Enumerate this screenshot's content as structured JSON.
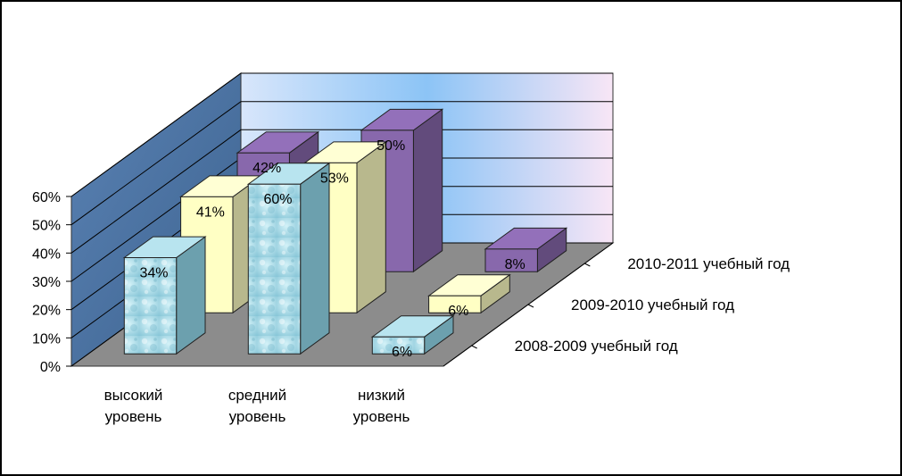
{
  "chart_data": {
    "type": "bar",
    "subtype": "3d-clustered-rows",
    "categories": [
      [
        "высокий",
        "уровень"
      ],
      [
        "средний",
        "уровень"
      ],
      [
        "низкий",
        "уровень"
      ]
    ],
    "series": [
      {
        "name": "2008-2009 учебный год",
        "values": [
          34,
          60,
          6
        ],
        "labels": [
          "34%",
          "60%",
          "6%"
        ],
        "color": "#aee0ec"
      },
      {
        "name": "2009-2010 учебный год",
        "values": [
          41,
          53,
          6
        ],
        "labels": [
          "41%",
          "53%",
          "6%"
        ],
        "color": "#ffffc4"
      },
      {
        "name": "2010-2011 учебный год",
        "values": [
          42,
          50,
          8
        ],
        "labels": [
          "42%",
          "50%",
          "8%"
        ],
        "color": "#8868ac"
      }
    ],
    "y_ticks": [
      "0%",
      "10%",
      "20%",
      "30%",
      "40%",
      "50%",
      "60%"
    ],
    "ylim": [
      0,
      60
    ],
    "grid": true,
    "title": "",
    "xlabel": "",
    "ylabel": ""
  }
}
